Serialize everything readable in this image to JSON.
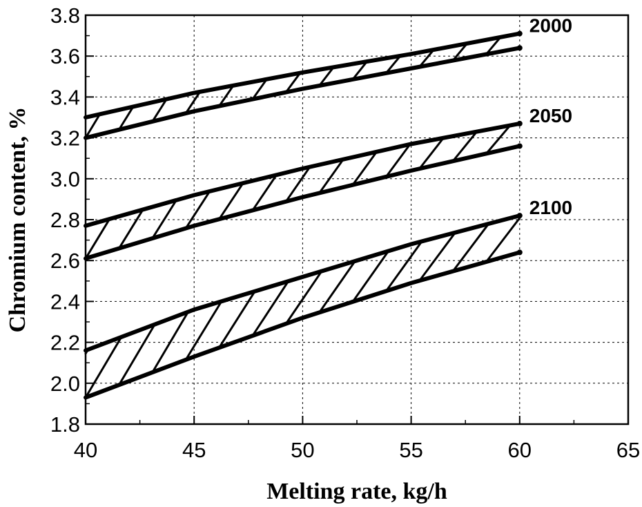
{
  "chart_data": {
    "type": "area",
    "xlabel": "Melting rate, kg/h",
    "ylabel": "Chromium content, %",
    "xlim": [
      40,
      65
    ],
    "ylim": [
      1.8,
      3.8
    ],
    "xticks": [
      "40",
      "45",
      "50",
      "55",
      "60",
      "65"
    ],
    "yticks": [
      "1.8",
      "2.0",
      "2.2",
      "2.4",
      "2.6",
      "2.8",
      "3.0",
      "3.2",
      "3.4",
      "3.6",
      "3.8"
    ],
    "grid": true,
    "hatched_bands": true,
    "series": [
      {
        "name": "2000",
        "x": [
          40,
          45,
          50,
          55,
          60
        ],
        "upper": [
          3.3,
          3.42,
          3.52,
          3.61,
          3.71
        ],
        "lower": [
          3.2,
          3.33,
          3.44,
          3.54,
          3.64
        ]
      },
      {
        "name": "2050",
        "x": [
          40,
          45,
          50,
          55,
          60
        ],
        "upper": [
          2.77,
          2.92,
          3.05,
          3.17,
          3.27
        ],
        "lower": [
          2.61,
          2.77,
          2.91,
          3.04,
          3.16
        ]
      },
      {
        "name": "2100",
        "x": [
          40,
          45,
          50,
          55,
          60
        ],
        "upper": [
          2.16,
          2.36,
          2.52,
          2.68,
          2.82
        ],
        "lower": [
          1.93,
          2.13,
          2.32,
          2.49,
          2.64
        ]
      }
    ]
  }
}
